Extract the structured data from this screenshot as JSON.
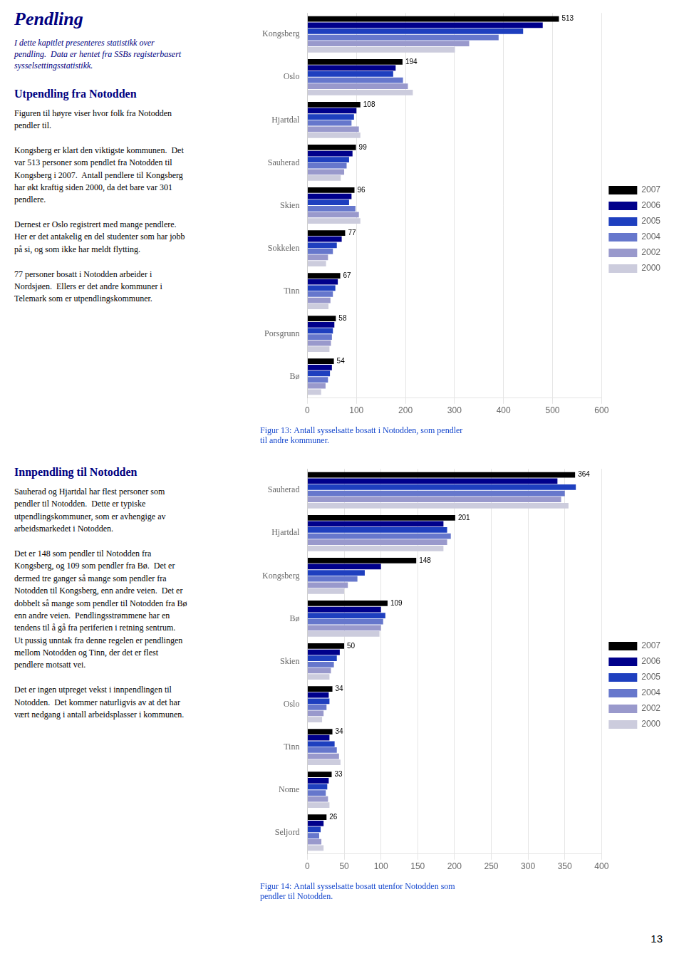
{
  "chart_data": [
    {
      "type": "bar",
      "orientation": "horizontal",
      "title": "Figur 13: Antall sysselsatte bosatt i Notodden, som pendler\ntil andre kommuner.",
      "annotations": [
        "Pendling",
        "I dette kapitlet presenteres statistikk over\npendling.  Data er hentet fra SSBs registerbasert\nsysselsettingsstatistikk.",
        "Utpendling fra Notodden",
        "Figuren til høyre viser hvor folk fra Notodden\npendler til.\n\nKongsberg er klart den viktigste kommunen.  Det\nvar 513 personer som pendlet fra Notodden til\nKongsberg i 2007.  Antall pendlere til Kongsberg\nhar økt kraftig siden 2000, da det bare var 301\npendlere.\n\nDernest er Oslo registrert med mange pendlere.\nHer er det antakelig en del studenter som har jobb\npå si, og som ikke har meldt flytting.\n\n77 personer bosatt i Notodden arbeider i\nNordsjøen.  Ellers er det andre kommuner i\nTelemark som er utpendlingskommuner."
      ],
      "categories": [
        "Kongsberg",
        "Oslo",
        "Hjartdal",
        "Sauherad",
        "Skien",
        "Sokkelen",
        "Tinn",
        "Porsgrunn",
        "Bø"
      ],
      "series": [
        {
          "name": "2007",
          "color": "#000000",
          "data_labels": true,
          "values": [
            513,
            194,
            108,
            99,
            96,
            77,
            67,
            58,
            54
          ]
        },
        {
          "name": "2006",
          "color": "#00008B",
          "values": [
            480,
            180,
            100,
            92,
            90,
            70,
            62,
            55,
            50
          ]
        },
        {
          "name": "2005",
          "color": "#1E3FBF",
          "values": [
            440,
            175,
            95,
            85,
            85,
            60,
            57,
            52,
            46
          ]
        },
        {
          "name": "2004",
          "color": "#6677CC",
          "values": [
            390,
            195,
            90,
            80,
            98,
            52,
            52,
            50,
            42
          ]
        },
        {
          "name": "2002",
          "color": "#9999CC",
          "values": [
            330,
            205,
            105,
            75,
            105,
            42,
            47,
            48,
            37
          ]
        },
        {
          "name": "2000",
          "color": "#CCCCDD",
          "values": [
            301,
            215,
            108,
            68,
            108,
            38,
            43,
            45,
            28
          ]
        }
      ],
      "xlim": [
        0,
        600
      ],
      "xticks": [
        0,
        100,
        200,
        300,
        400,
        500,
        600
      ],
      "grid": true,
      "legend": "right"
    },
    {
      "type": "bar",
      "orientation": "horizontal",
      "title": "Figur 14: Antall sysselsatte bosatt utenfor Notodden som\npendler til Notodden.",
      "annotations": [
        "Innpendling til Notodden",
        "Sauherad og Hjartdal har flest personer som\npendler til Notodden.  Dette er typiske\nutpendlingskommuner, som er avhengige av\narbeidsmarkedet i Notodden.\n\nDet er 148 som pendler til Notodden fra\nKongsberg, og 109 som pendler fra Bø.  Det er\ndermed tre ganger så mange som pendler fra\nNotodden til Kongsberg, enn andre veien.  Det er\ndobbelt så mange som pendler til Notodden fra Bø\nenn andre veien.  Pendlingsstrømmene har en\ntendens til å gå fra periferien i retning sentrum.\nUt pussig unntak fra denne regelen er pendlingen\nmellom Notodden og Tinn, der det er flest\npendlere motsatt vei.\n\nDet er ingen utpreget vekst i innpendlingen til\nNotodden.  Det kommer naturligvis av at det har\nvært nedgang i antall arbeidsplasser i kommunen.",
        "13"
      ],
      "categories": [
        "Sauherad",
        "Hjartdal",
        "Kongsberg",
        "Bø",
        "Skien",
        "Oslo",
        "Tinn",
        "Nome",
        "Seljord"
      ],
      "series": [
        {
          "name": "2007",
          "color": "#000000",
          "data_labels": true,
          "values": [
            364,
            201,
            148,
            109,
            50,
            34,
            34,
            33,
            26
          ]
        },
        {
          "name": "2006",
          "color": "#00008B",
          "values": [
            340,
            185,
            100,
            100,
            44,
            29,
            30,
            29,
            22
          ]
        },
        {
          "name": "2005",
          "color": "#1E3FBF",
          "values": [
            365,
            190,
            78,
            106,
            40,
            30,
            37,
            27,
            18
          ]
        },
        {
          "name": "2004",
          "color": "#6677CC",
          "values": [
            350,
            195,
            68,
            103,
            36,
            26,
            40,
            25,
            16
          ]
        },
        {
          "name": "2002",
          "color": "#9999CC",
          "values": [
            345,
            190,
            55,
            100,
            32,
            22,
            43,
            28,
            19
          ]
        },
        {
          "name": "2000",
          "color": "#CCCCDD",
          "values": [
            355,
            185,
            50,
            98,
            30,
            20,
            45,
            30,
            22
          ]
        }
      ],
      "xlim": [
        0,
        400
      ],
      "xticks": [
        0,
        50,
        100,
        150,
        200,
        250,
        300,
        350,
        400
      ],
      "grid": true,
      "legend": "right"
    }
  ]
}
